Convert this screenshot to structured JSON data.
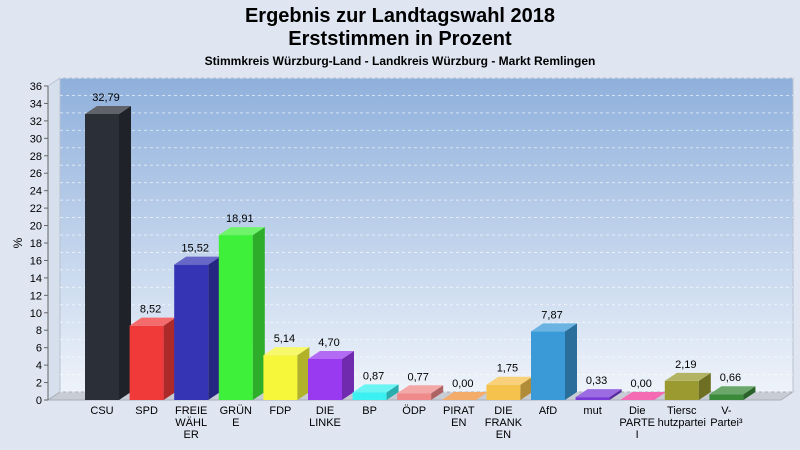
{
  "header": {
    "title_line1": "Ergebnis zur Landtagswahl 2018",
    "title_line2": "Erststimmen in Prozent",
    "subtitle": "Stimmkreis Würzburg-Land - Landkreis Würzburg - Markt Remlingen"
  },
  "chart_data": {
    "type": "bar",
    "title": "Ergebnis zur Landtagswahl 2018 Erststimmen in Prozent",
    "subtitle": "Stimmkreis Würzburg-Land - Landkreis Würzburg - Markt Remlingen",
    "ylabel": "%",
    "xlabel": "",
    "ylim": [
      0,
      36
    ],
    "yticks": [
      0,
      2,
      4,
      6,
      8,
      10,
      12,
      14,
      16,
      18,
      20,
      22,
      24,
      26,
      28,
      30,
      32,
      34,
      36
    ],
    "grid": true,
    "categories": [
      [
        "CSU"
      ],
      [
        "SPD"
      ],
      [
        "FREIE",
        "WÄHL",
        "ER"
      ],
      [
        "GRÜN",
        "E"
      ],
      [
        "FDP"
      ],
      [
        "DIE",
        "LINKE"
      ],
      [
        "BP"
      ],
      [
        "ÖDP"
      ],
      [
        "PIRAT",
        "EN"
      ],
      [
        "DIE",
        "FRANK",
        "EN"
      ],
      [
        "AfD"
      ],
      [
        "mut"
      ],
      [
        "Die",
        "PARTE",
        "I"
      ],
      [
        "Tiersc",
        "hutzpartei"
      ],
      [
        "V-",
        "Partei³"
      ]
    ],
    "values": [
      32.79,
      8.52,
      15.52,
      18.91,
      5.14,
      4.7,
      0.87,
      0.77,
      0.0,
      1.75,
      7.87,
      0.33,
      0.0,
      2.19,
      0.66
    ],
    "value_labels": [
      "32,79",
      "8,52",
      "15,52",
      "18,91",
      "5,14",
      "4,70",
      "0,87",
      "0,77",
      "0,00",
      "1,75",
      "7,87",
      "0,33",
      "0,00",
      "2,19",
      "0,66"
    ],
    "colors": [
      "#2b2f38",
      "#f03a3a",
      "#3434b4",
      "#3ef03a",
      "#f6f63a",
      "#9a3af0",
      "#3af0f0",
      "#f08a8a",
      "#f0903a",
      "#f6c24e",
      "#3a9ad8",
      "#7a3ad8",
      "#f03a9a",
      "#9a9a30",
      "#3a8a3a"
    ]
  }
}
